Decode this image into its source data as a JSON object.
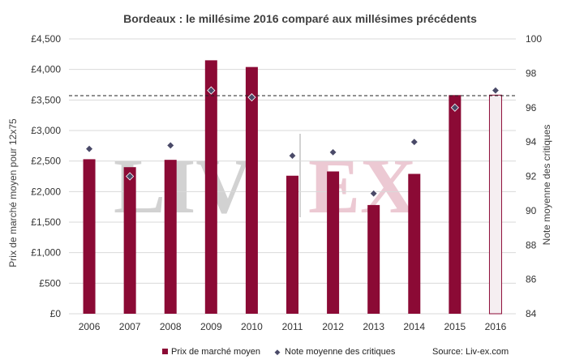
{
  "chart_data": {
    "type": "bar",
    "title": "Bordeaux : le millésime 2016 comparé aux millésimes précédents",
    "categories": [
      "2006",
      "2007",
      "2008",
      "2009",
      "2010",
      "2011",
      "2012",
      "2013",
      "2014",
      "2015",
      "2016"
    ],
    "series": [
      {
        "name": "Prix de marché moyen",
        "type": "bar",
        "axis": "left",
        "values": [
          2530,
          2400,
          2520,
          4150,
          4040,
          2260,
          2330,
          1780,
          2290,
          3580,
          3580
        ],
        "hollow_last": true
      },
      {
        "name": "Note moyenne des critiques",
        "type": "scatter",
        "axis": "right",
        "values": [
          93.6,
          92.0,
          93.8,
          97.0,
          96.6,
          93.2,
          93.4,
          91.0,
          94.0,
          96.0,
          97.0
        ]
      }
    ],
    "reference_line": {
      "axis": "left",
      "value": 3570,
      "style": "dashed"
    },
    "ylabel": "Prix de marché moyen pour 12x75",
    "y2label": "Note moyenne des critiques",
    "ylim": [
      0,
      4500
    ],
    "y_ticks": [
      "£0",
      "£500",
      "£1,000",
      "£1,500",
      "£2,000",
      "£2,500",
      "£3,000",
      "£3,500",
      "£4,000",
      "£4,500"
    ],
    "y2lim": [
      84,
      100
    ],
    "y2_ticks": [
      "84",
      "86",
      "88",
      "90",
      "92",
      "94",
      "96",
      "98",
      "100"
    ],
    "grid": true,
    "legend_position": "bottom",
    "source": "Source: Liv-ex.com",
    "watermark": {
      "left": "LIV",
      "right": "EX"
    }
  },
  "colors": {
    "bar": "#8b0a35",
    "marker": "#4a4a68",
    "grid": "#d9d9d9",
    "hollow_fill": "#f5eef1",
    "watermark_left": "#d2d2d2",
    "watermark_right": "#ecc9d3"
  }
}
